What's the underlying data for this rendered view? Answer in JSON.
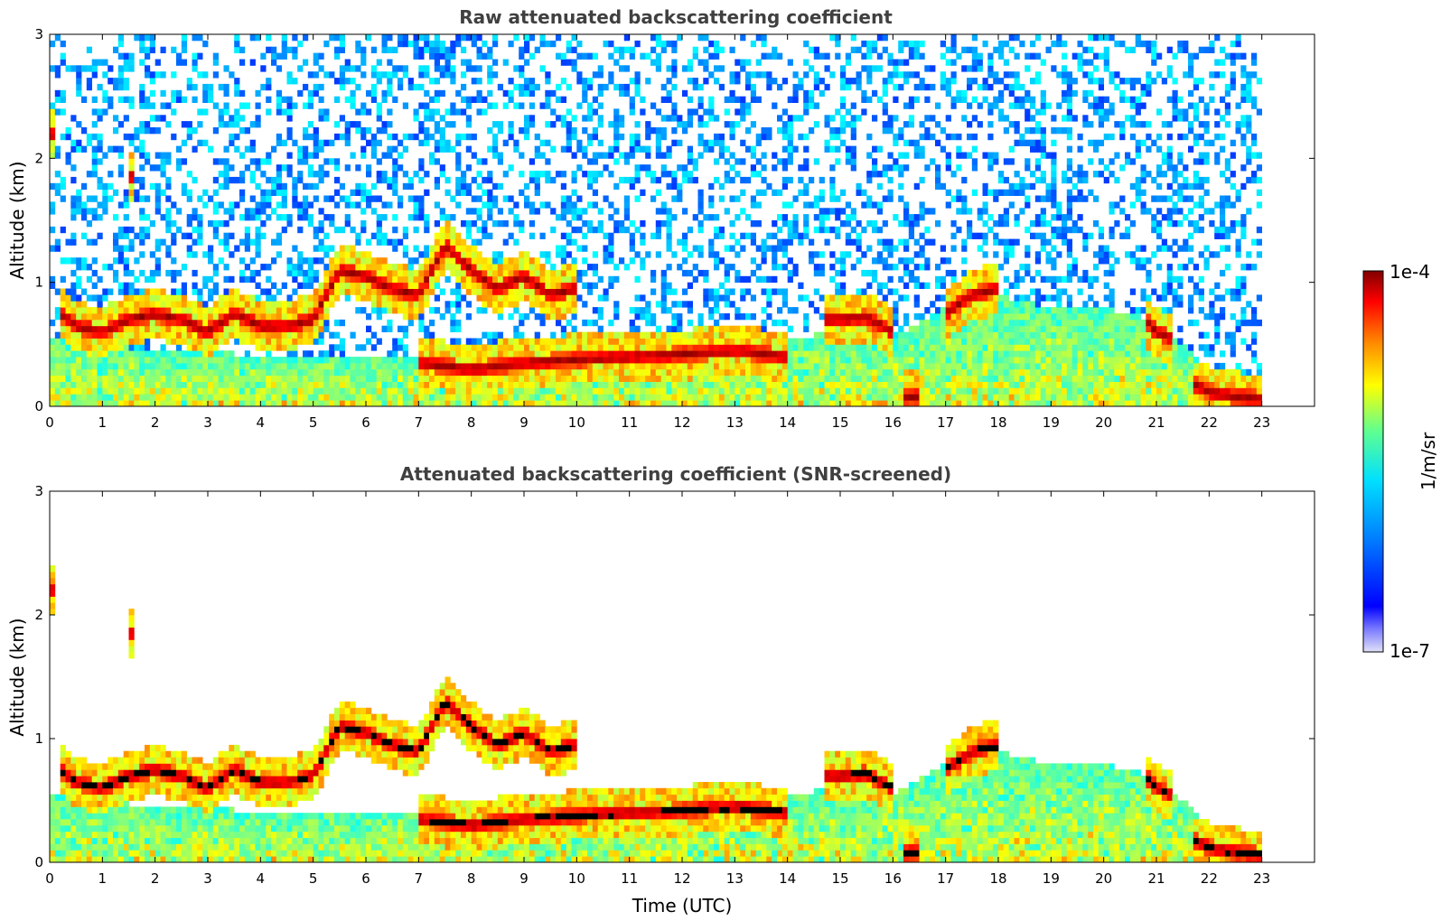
{
  "chart_data": [
    {
      "type": "heatmap",
      "title": "Raw attenuated backscattering coefficient",
      "xlabel": "",
      "ylabel": "Altitude (km)",
      "xlim": [
        0,
        24
      ],
      "ylim": [
        0,
        3
      ],
      "xticks": [
        "0",
        "1",
        "2",
        "3",
        "4",
        "5",
        "6",
        "7",
        "8",
        "9",
        "10",
        "11",
        "12",
        "13",
        "14",
        "15",
        "16",
        "17",
        "18",
        "19",
        "20",
        "21",
        "22",
        "23"
      ],
      "yticks": [
        "0",
        "1",
        "2",
        "3"
      ],
      "data_extent_x": [
        0,
        23
      ],
      "screened": false,
      "layers": [
        {
          "feature": "aerosol boundary layer",
          "x_range": [
            0,
            23
          ],
          "top_km": [
            0.55,
            0.5,
            0.45,
            0.45,
            0.4,
            0.4,
            0.4,
            0.4,
            0.35,
            0.35,
            0.35,
            0.35,
            0.4,
            0.5,
            0.55,
            0.6,
            0.55,
            0.8,
            0.9,
            0.8,
            0.8,
            0.7,
            0.3,
            0.2
          ]
        },
        {
          "feature": "cloud layer",
          "x": [
            0.2,
            0.5,
            1.0,
            1.5,
            2.0,
            2.5,
            3.0,
            3.5,
            4.0,
            4.5,
            5.0,
            5.5,
            6.0,
            6.5,
            7.0,
            7.5,
            8.0,
            8.5,
            9.0,
            9.5,
            10.0
          ],
          "altitude_km": [
            0.75,
            0.65,
            0.6,
            0.7,
            0.75,
            0.7,
            0.6,
            0.75,
            0.65,
            0.65,
            0.7,
            1.1,
            1.05,
            0.95,
            0.9,
            1.3,
            1.1,
            0.95,
            1.05,
            0.9,
            0.95
          ]
        },
        {
          "feature": "cloud layer",
          "x": [
            7.0,
            8.0,
            9.0,
            10.0,
            11.0,
            12.0,
            13.0,
            14.0
          ],
          "altitude_km": [
            0.35,
            0.3,
            0.35,
            0.38,
            0.4,
            0.42,
            0.45,
            0.4
          ]
        },
        {
          "feature": "cloud layer",
          "x": [
            14.7,
            15.0,
            15.5,
            16.0
          ],
          "altitude_km": [
            0.7,
            0.7,
            0.72,
            0.6
          ]
        },
        {
          "feature": "cloud layer",
          "x": [
            16.2,
            16.5
          ],
          "altitude_km": [
            0.08,
            0.08
          ]
        },
        {
          "feature": "cloud layer",
          "x": [
            17.0,
            17.5,
            18.0
          ],
          "altitude_km": [
            0.75,
            0.9,
            0.95
          ]
        },
        {
          "feature": "cloud layer",
          "x": [
            20.8,
            21.0,
            21.3
          ],
          "altitude_km": [
            0.7,
            0.6,
            0.55
          ]
        },
        {
          "feature": "cloud layer",
          "x": [
            21.7,
            22.0,
            22.5,
            23.0
          ],
          "altitude_km": [
            0.18,
            0.12,
            0.08,
            0.06
          ]
        },
        {
          "feature": "cloud layer",
          "x": [
            0.0,
            0.15
          ],
          "altitude_km": [
            2.2,
            2.2
          ]
        },
        {
          "feature": "cloud layer",
          "x": [
            1.5,
            1.6
          ],
          "altitude_km": [
            1.85,
            1.85
          ]
        }
      ],
      "colorbar": {
        "label": "1/m/sr",
        "min_label": "1e-7",
        "max_label": "1e-4",
        "min": 1e-07,
        "max": 0.0001,
        "scale": "log",
        "colormap": "jet"
      }
    },
    {
      "type": "heatmap",
      "title": "Attenuated backscattering coefficient (SNR-screened)",
      "xlabel": "Time (UTC)",
      "ylabel": "Altitude (km)",
      "xlim": [
        0,
        24
      ],
      "ylim": [
        0,
        3
      ],
      "xticks": [
        "0",
        "1",
        "2",
        "3",
        "4",
        "5",
        "6",
        "7",
        "8",
        "9",
        "10",
        "11",
        "12",
        "13",
        "14",
        "15",
        "16",
        "17",
        "18",
        "19",
        "20",
        "21",
        "22",
        "23"
      ],
      "yticks": [
        "0",
        "1",
        "2",
        "3"
      ],
      "data_extent_x": [
        0,
        23
      ],
      "screened": true,
      "saturated_color": "#000000"
    }
  ],
  "colors": {
    "title": "#404040",
    "jet": [
      "#00008f",
      "#0000ff",
      "#0080ff",
      "#00ffff",
      "#80ff80",
      "#ffff00",
      "#ff8000",
      "#ff0000",
      "#800000"
    ],
    "low_end": "#e0e0f8",
    "saturated": "#000000"
  }
}
